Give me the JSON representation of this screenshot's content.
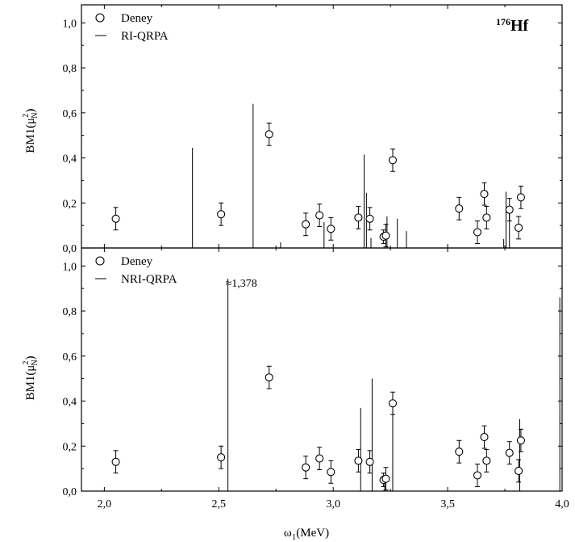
{
  "figure": {
    "nucleus_mass": "176",
    "nucleus_symbol": "Hf",
    "xlabel_main": "ω",
    "xlabel_sub": "1",
    "xlabel_rest": "(MeV)",
    "ylabel_main": "BM1(μ",
    "ylabel_sup": "2",
    "ylabel_sub": "N",
    "ylabel_close": ")"
  },
  "chart_data": [
    {
      "type": "scatter+stem",
      "panel": "top",
      "legend": [
        "Deney",
        "RI-QRPA"
      ],
      "xlim": [
        1.9,
        4.0
      ],
      "ylim": [
        0.0,
        1.08
      ],
      "xticks": [
        2.0,
        2.5,
        3.0,
        3.5,
        4.0
      ],
      "xtick_labels": [
        "2,0",
        "2,5",
        "3,0",
        "3,5",
        "4,0"
      ],
      "yticks": [
        0.0,
        0.2,
        0.4,
        0.6,
        0.8,
        1.0
      ],
      "ytick_labels": [
        "0,0",
        "0,2",
        "0,4",
        "0,6",
        "0,8",
        "1,0"
      ],
      "experiment": [
        {
          "x": 2.05,
          "y": 0.13,
          "err": 0.05
        },
        {
          "x": 2.51,
          "y": 0.15,
          "err": 0.05
        },
        {
          "x": 2.72,
          "y": 0.505,
          "err": 0.05
        },
        {
          "x": 2.88,
          "y": 0.105,
          "err": 0.05
        },
        {
          "x": 2.94,
          "y": 0.145,
          "err": 0.05
        },
        {
          "x": 2.99,
          "y": 0.085,
          "err": 0.05
        },
        {
          "x": 3.11,
          "y": 0.135,
          "err": 0.05
        },
        {
          "x": 3.16,
          "y": 0.13,
          "err": 0.05
        },
        {
          "x": 3.22,
          "y": 0.05,
          "err": 0.03
        },
        {
          "x": 3.23,
          "y": 0.055,
          "err": 0.05
        },
        {
          "x": 3.26,
          "y": 0.39,
          "err": 0.05
        },
        {
          "x": 3.55,
          "y": 0.175,
          "err": 0.05
        },
        {
          "x": 3.63,
          "y": 0.07,
          "err": 0.05
        },
        {
          "x": 3.66,
          "y": 0.24,
          "err": 0.05
        },
        {
          "x": 3.67,
          "y": 0.135,
          "err": 0.05
        },
        {
          "x": 3.77,
          "y": 0.17,
          "err": 0.05
        },
        {
          "x": 3.81,
          "y": 0.09,
          "err": 0.05
        },
        {
          "x": 3.82,
          "y": 0.225,
          "err": 0.05
        }
      ],
      "theory": [
        {
          "x": 2.385,
          "y": 0.445
        },
        {
          "x": 2.65,
          "y": 0.64
        },
        {
          "x": 2.77,
          "y": 0.025
        },
        {
          "x": 2.96,
          "y": 0.115
        },
        {
          "x": 3.135,
          "y": 0.415
        },
        {
          "x": 3.145,
          "y": 0.245
        },
        {
          "x": 3.165,
          "y": 0.045
        },
        {
          "x": 3.235,
          "y": 0.14
        },
        {
          "x": 3.28,
          "y": 0.13
        },
        {
          "x": 3.32,
          "y": 0.075
        },
        {
          "x": 3.745,
          "y": 0.04
        },
        {
          "x": 3.755,
          "y": 0.25
        },
        {
          "x": 3.77,
          "y": 0.18
        }
      ]
    },
    {
      "type": "scatter+stem",
      "panel": "bottom",
      "legend": [
        "Deney",
        "NRI-QRPA"
      ],
      "annotation": "≈1,378",
      "xlim": [
        1.9,
        4.0
      ],
      "ylim": [
        0.0,
        1.08
      ],
      "xticks": [
        2.0,
        2.5,
        3.0,
        3.5,
        4.0
      ],
      "xtick_labels": [
        "2,0",
        "2,5",
        "3,0",
        "3,5",
        "4,0"
      ],
      "yticks": [
        0.0,
        0.2,
        0.4,
        0.6,
        0.8,
        1.0
      ],
      "ytick_labels": [
        "0,0",
        "0,2",
        "0,4",
        "0,6",
        "0,8",
        "1,0"
      ],
      "experiment": [
        {
          "x": 2.05,
          "y": 0.13,
          "err": 0.05
        },
        {
          "x": 2.51,
          "y": 0.15,
          "err": 0.05
        },
        {
          "x": 2.72,
          "y": 0.505,
          "err": 0.05
        },
        {
          "x": 2.88,
          "y": 0.105,
          "err": 0.05
        },
        {
          "x": 2.94,
          "y": 0.145,
          "err": 0.05
        },
        {
          "x": 2.99,
          "y": 0.085,
          "err": 0.05
        },
        {
          "x": 3.11,
          "y": 0.135,
          "err": 0.05
        },
        {
          "x": 3.16,
          "y": 0.13,
          "err": 0.05
        },
        {
          "x": 3.22,
          "y": 0.05,
          "err": 0.03
        },
        {
          "x": 3.23,
          "y": 0.055,
          "err": 0.05
        },
        {
          "x": 3.26,
          "y": 0.39,
          "err": 0.05
        },
        {
          "x": 3.55,
          "y": 0.175,
          "err": 0.05
        },
        {
          "x": 3.63,
          "y": 0.07,
          "err": 0.05
        },
        {
          "x": 3.66,
          "y": 0.24,
          "err": 0.05
        },
        {
          "x": 3.67,
          "y": 0.135,
          "err": 0.05
        },
        {
          "x": 3.77,
          "y": 0.17,
          "err": 0.05
        },
        {
          "x": 3.81,
          "y": 0.09,
          "err": 0.05
        },
        {
          "x": 3.82,
          "y": 0.225,
          "err": 0.05
        }
      ],
      "theory": [
        {
          "x": 2.54,
          "y": 1.378,
          "clipped": true
        },
        {
          "x": 3.12,
          "y": 0.37
        },
        {
          "x": 3.17,
          "y": 0.5
        },
        {
          "x": 3.225,
          "y": 0.065
        },
        {
          "x": 3.26,
          "y": 0.34
        },
        {
          "x": 3.815,
          "y": 0.32
        },
        {
          "x": 3.99,
          "y": 0.86
        }
      ]
    }
  ]
}
